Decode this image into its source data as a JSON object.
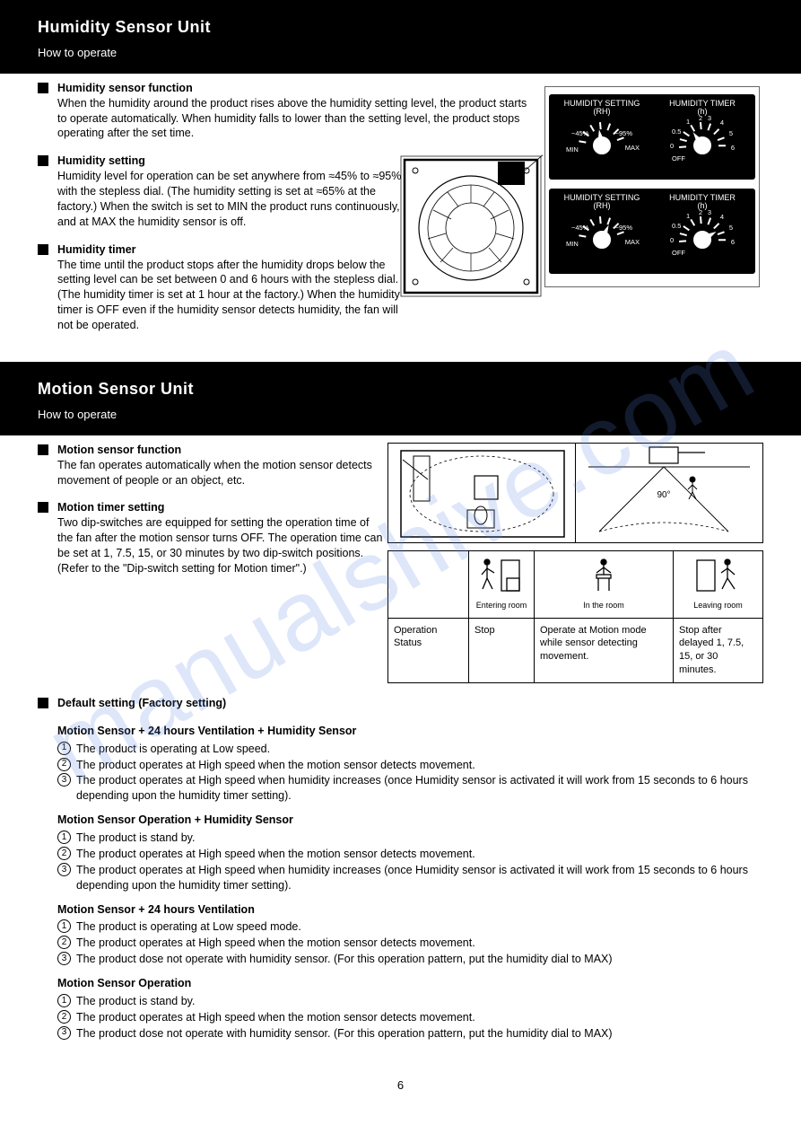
{
  "watermark": "manualshive.com",
  "section1": {
    "title": "Humidity Sensor Unit",
    "subtitle": "How to operate",
    "p1_lead": "Humidity sensor function",
    "p1": "When the humidity around the product rises above the humidity setting level, the product starts to operate automatically. When humidity falls to lower than the setting level, the product stops operating after the set time.",
    "p2_lead": "Humidity setting",
    "p2": "Humidity level for operation can be set anywhere from ≈45% to ≈95% with the stepless dial. (The humidity setting is set at ≈65% at the factory.) When the switch is set to MIN the product runs continuously, and at MAX the humidity sensor is off.",
    "p3_lead": "Humidity timer",
    "p3": "The time until the product stops after the humidity drops below the setting level can be set between 0 and 6 hours with the stepless dial. (The humidity timer is set at 1 hour at the factory.) When the humidity timer is OFF even if the humidity sensor detects humidity, the fan will not be operated.",
    "panel": {
      "left_title": "HUMIDITY SETTING\n(RH)",
      "right_title": "HUMIDITY TIMER\n(h)",
      "lbl_min": "MIN",
      "lbl_45": "~45%",
      "lbl_95": "~95%",
      "lbl_max": "MAX",
      "lbl_off": "OFF",
      "lbl_0": "0",
      "lbl_05": "0.5",
      "lbl_1": "1",
      "lbl_2": "2",
      "lbl_3": "3",
      "lbl_4": "4",
      "lbl_5": "5",
      "lbl_6": "6"
    }
  },
  "section2": {
    "title": "Motion Sensor Unit",
    "subtitle": "How to operate",
    "p1_lead": "Motion sensor function",
    "p1": "The fan operates automatically when the motion sensor detects movement of people or an object, etc.",
    "p2_lead": "Motion timer setting",
    "p2": "Two dip-switches are equipped for setting the operation time of the fan after the motion sensor turns OFF. The operation time can be set at 1, 7.5, 15, or 30 minutes by two dip-switch positions. (Refer to the \"Dip-switch setting for Motion timer\".)",
    "illu": {
      "left_label": "",
      "right_angle": "90°"
    },
    "table": {
      "c0r0": "",
      "c1r0_lbl": "Entering room",
      "c2r0_lbl": "In the room",
      "c3r0_lbl": "Leaving room",
      "c0r1": "Operation Status",
      "c1r1": "Stop",
      "c2r1": "Operate at Motion mode while sensor detecting movement.",
      "c3r1": "Stop after delayed 1, 7.5, 15, or 30 minutes."
    },
    "default_setting_lead": "Default setting (Factory setting)",
    "blocks": [
      {
        "lead": "Motion Sensor + 24 hours Ventilation + Humidity Sensor",
        "lines": [
          "The product is operating at Low speed.",
          "The product operates at High speed when the motion sensor detects movement.",
          "The product operates at High speed when humidity increases (once Humidity sensor is activated it will work from 15 seconds to 6 hours depending upon the humidity timer setting)."
        ]
      },
      {
        "lead": "Motion Sensor Operation + Humidity Sensor",
        "lines": [
          "The product is stand by.",
          "The product operates at High speed when the motion sensor detects movement.",
          "The product operates at High speed when humidity increases (once Humidity sensor is activated it will work from 15 seconds to 6 hours depending upon the humidity timer setting)."
        ]
      },
      {
        "lead": "Motion Sensor + 24 hours Ventilation",
        "lines": [
          "The product is operating at Low speed mode.",
          "The product operates at High speed when the motion sensor detects movement.",
          "The product dose not operate with humidity sensor. (For this operation pattern, put the humidity dial to MAX)"
        ]
      },
      {
        "lead": "Motion Sensor Operation",
        "lines": [
          "The product is stand by.",
          "The product operates at High speed when the motion sensor detects movement.",
          "The product dose not operate with humidity sensor. (For this operation pattern, put the humidity dial to MAX)"
        ]
      }
    ]
  },
  "page_number": "6"
}
